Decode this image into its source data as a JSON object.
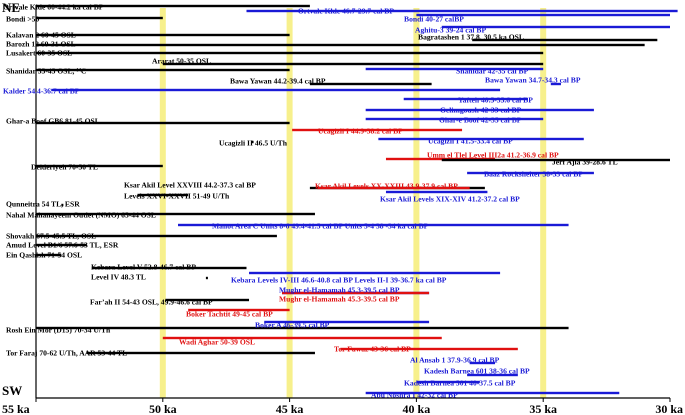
{
  "chart_data": {
    "type": "range",
    "x_direction": "descending",
    "xlim": [
      55,
      30
    ],
    "x_ticks": [
      {
        "value": 55,
        "label": "55 ka"
      },
      {
        "value": 50,
        "label": "50 ka"
      },
      {
        "value": 45,
        "label": "45 ka"
      },
      {
        "value": 40,
        "label": "40 ka"
      },
      {
        "value": 35,
        "label": "35 ka"
      },
      {
        "value": 30,
        "label": "30 ka"
      }
    ],
    "highlight_lines": [
      50,
      45,
      40,
      35
    ],
    "top_label": "NE",
    "bottom_label": "SW",
    "colors": {
      "black": "#000000",
      "blue": "#1a1ad6",
      "red": "#e01010",
      "highlight": "#f7f08c"
    },
    "series": [
      {
        "label": "Ortvale Klde 60-44.2 ka cal BP",
        "color": "black",
        "start": 55,
        "end": 44.2
      },
      {
        "label": "Bondi >50",
        "color": "black",
        "start": 55,
        "end": 50
      },
      {
        "label": "Ortvale Klde  46.7-29.7 cal BP",
        "color": "blue",
        "start": 46.7,
        "end": 29.7
      },
      {
        "label": "Bondi 40-27 calBP",
        "color": "blue",
        "start": 40,
        "end": 30
      },
      {
        "label": "Aghitu-3 39-24 cal BP",
        "color": "blue",
        "start": 39,
        "end": 30
      },
      {
        "label": "Kalavan 2 60-45 OSL",
        "color": "black",
        "start": 55,
        "end": 45
      },
      {
        "label": "Bagratashen 1 37.8, 30.5 ka OSL",
        "color": "black",
        "start": 37.8,
        "end": 30.5
      },
      {
        "label": "Barozh 12 60-31 OSL",
        "color": "black",
        "start": 55,
        "end": 31
      },
      {
        "label": "Lusakert 60-35 OSL",
        "color": "black",
        "start": 55,
        "end": 35
      },
      {
        "label": "Ararat 50-35 OSL",
        "color": "black",
        "start": 50,
        "end": 35
      },
      {
        "label": "Shanidar 55-45 OSL, ¹⁴C",
        "color": "black",
        "start": 55,
        "end": 45
      },
      {
        "label": "Shanidar 42-35 cal BP",
        "color": "blue",
        "start": 42,
        "end": 35
      },
      {
        "label": "Bawa Yawan 44.2-39.4 cal BP",
        "color": "black",
        "start": 44.2,
        "end": 39.4
      },
      {
        "label": "Bawa Yawan 34.7-34.3 cal BP",
        "color": "blue",
        "start": 34.7,
        "end": 34.3
      },
      {
        "label": "Kalder 54.4-36.7 cal BP",
        "color": "blue",
        "start": 54.4,
        "end": 36.7
      },
      {
        "label": "Yafteh  40.5-35.6 cal BP",
        "color": "blue",
        "start": 40.5,
        "end": 35.6
      },
      {
        "label": "Gelimgoush 42-33 cal BP",
        "color": "blue",
        "start": 42,
        "end": 33
      },
      {
        "label": "Ghar-a Boof GB6 81-45 OSL",
        "color": "black",
        "start": 55,
        "end": 45
      },
      {
        "label": "Ghar-e Boof 42-35 cal BP",
        "color": "blue",
        "start": 42,
        "end": 35
      },
      {
        "label": "Ucagizli I 44.9-38.2 cal BP",
        "color": "red",
        "start": 44.9,
        "end": 38.2
      },
      {
        "label": "Ucagizli I 41.5-33.4 cal BP",
        "color": "blue",
        "start": 41.5,
        "end": 33.4
      },
      {
        "label": "Ucagizli II 46.5 U/Th",
        "color": "black",
        "start": 46.5,
        "end": 46.5
      },
      {
        "label": "Umm el Tlel Level III2a 41.2-36.9 cal BP",
        "color": "red",
        "start": 41.2,
        "end": 36.9
      },
      {
        "label": "Jerf Ajla 39-28.6 TL",
        "color": "black",
        "start": 39,
        "end": 30
      },
      {
        "label": "Deideriyeh 70-50 TL",
        "color": "black",
        "start": 55,
        "end": 50
      },
      {
        "label": "Baaz Rockshelter 38-33 cal BP",
        "color": "blue",
        "start": 38,
        "end": 33
      },
      {
        "label": "Ksar Akil Level XXVIII 44.2-37.3 cal BP",
        "color": "black",
        "start": 44.2,
        "end": 37.3
      },
      {
        "label": "Ksar Akil Levels XX-XXIII 43.9-37.9 cal BP",
        "color": "red",
        "start": 43.9,
        "end": 37.9
      },
      {
        "label": "Levels XXVI-XXVII 51-49 U/Th",
        "color": "black",
        "start": 51,
        "end": 49
      },
      {
        "label": "Ksar Akil Levels XIX-XIV 41.2-37.2 cal BP",
        "color": "blue",
        "start": 41.2,
        "end": 37.2
      },
      {
        "label": "Qunneitra 54 TL, ESR",
        "color": "black",
        "start": 54,
        "end": 54
      },
      {
        "label": "Nahal Mahanayeem Outlet (NMO) 65-44 OSL",
        "color": "black",
        "start": 55,
        "end": 44
      },
      {
        "label": "Manot Area C Units 8-6 49.4-41.5 cal BP Units 5-4 38 -34 ka cal BP",
        "color": "blue",
        "start": 49.4,
        "end": 34
      },
      {
        "label": "Shovakh 67.5-45.5 TL, OSL",
        "color": "black",
        "start": 55,
        "end": 45.5
      },
      {
        "label": "Amud Level B1/6 57.6-53 TL, ESR",
        "color": "black",
        "start": 55,
        "end": 53
      },
      {
        "label": "Ein Qashish 71-54 OSL",
        "color": "black",
        "start": 55,
        "end": 54
      },
      {
        "label": "Kebara Level V 52.8-46.7 cal BP",
        "color": "black",
        "start": 52.8,
        "end": 46.7
      },
      {
        "label": "Level IV 48.3 TL",
        "color": "black",
        "start": 48.3,
        "end": 48.3
      },
      {
        "label": "Kebara Levels IV-III 46.6-40.8 cal BP Levels II-I  39-36.7 ka cal BP",
        "color": "blue",
        "start": 46.6,
        "end": 36.7
      },
      {
        "label": "Mughr el-Hamamah 45.3-39.5 cal BP",
        "color": "blue",
        "start": 45.3,
        "end": 39.5
      },
      {
        "label": "Mughr el-Hamamah 45.3-39.5 cal BP",
        "color": "red",
        "start": 45.3,
        "end": 39.5
      },
      {
        "label": "Far’ah II 54-43 OSL, 49.9-46.6 cal BP",
        "color": "black",
        "start": 49.9,
        "end": 46.6
      },
      {
        "label": "Boker Tachtit 49-45 cal BP",
        "color": "red",
        "start": 49,
        "end": 45
      },
      {
        "label": "Boker A 46-39.5 cal BP",
        "color": "blue",
        "start": 46,
        "end": 39.5
      },
      {
        "label": "Rosh Ein Mor (D15) 70-34 U/Th",
        "color": "black",
        "start": 55,
        "end": 34
      },
      {
        "label": "Wadi Aghar 50-39 OSL",
        "color": "red",
        "start": 50,
        "end": 39
      },
      {
        "label": "Tor Fawaz 43-36 cal BP",
        "color": "red",
        "start": 43,
        "end": 36
      },
      {
        "label": "Tor Faraj 70-62 U/Th, AAR 53-44 TL",
        "color": "black",
        "start": 53,
        "end": 44
      },
      {
        "label": "Al Ansab 1 37.9-36.9 cal BP",
        "color": "blue",
        "start": 37.9,
        "end": 36.9
      },
      {
        "label": "Kadesh Barnea 601 38-36 cal BP",
        "color": "blue",
        "start": 38,
        "end": 36
      },
      {
        "label": "Kadesh Barnea 501 40-37.5 cal BP",
        "color": "blue",
        "start": 40,
        "end": 37.5
      },
      {
        "label": "Abu Noshra I 42-32 cal BP",
        "color": "blue",
        "start": 42,
        "end": 32
      }
    ]
  }
}
